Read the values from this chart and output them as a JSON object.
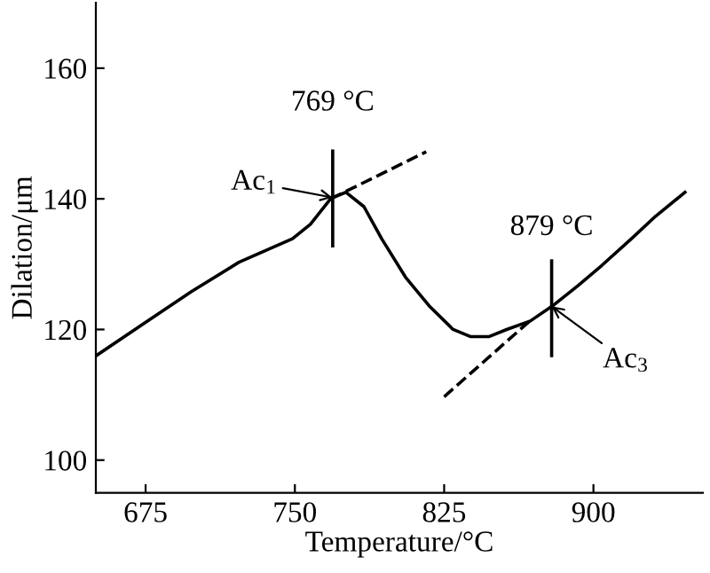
{
  "chart_data": {
    "type": "line",
    "xlabel": "Temperature/°C",
    "ylabel": "Dilation/μm",
    "xlim": [
      650,
      955
    ],
    "ylim": [
      95,
      170
    ],
    "xticks": [
      675,
      750,
      825,
      900
    ],
    "yticks": [
      100,
      120,
      140,
      160
    ],
    "grid": false,
    "legend": false,
    "series": [
      {
        "color": "#000000",
        "line_style": "solid",
        "x": [
          650.2,
          674.1,
          698.0,
          721.9,
          748.8,
          757.8,
          768.2,
          775.7,
          784.7,
          793.6,
          805.6,
          817.5,
          829.5,
          838.4,
          847.4,
          856.4,
          868.3,
          880.3,
          892.2,
          904.2,
          919.1,
          931.1,
          946.0
        ],
        "values": [
          116.0,
          120.9,
          125.8,
          130.3,
          133.9,
          136.1,
          140.1,
          141.0,
          138.8,
          133.9,
          128.0,
          123.6,
          120.0,
          118.9,
          118.9,
          120.0,
          121.3,
          123.8,
          126.7,
          129.8,
          133.9,
          137.3,
          141.0
        ]
      },
      {
        "color": "#000000",
        "line_style": "dashed",
        "x": [
          768,
          816
        ],
        "values": [
          140.0,
          147.2
        ]
      },
      {
        "color": "#000000",
        "line_style": "dashed",
        "x": [
          825,
          868
        ],
        "values": [
          109.7,
          121.3
        ]
      },
      {
        "color": "#000000",
        "line_style": "solid",
        "x": [
          769,
          769
        ],
        "values": [
          147.3,
          132.8
        ]
      },
      {
        "color": "#000000",
        "line_style": "solid",
        "x": [
          879,
          879
        ],
        "values": [
          130.5,
          116.0
        ]
      }
    ],
    "annotations": [
      "769 °C",
      "Ac$_{1}$",
      "879 °C",
      "Ac$_{3}$"
    ]
  }
}
